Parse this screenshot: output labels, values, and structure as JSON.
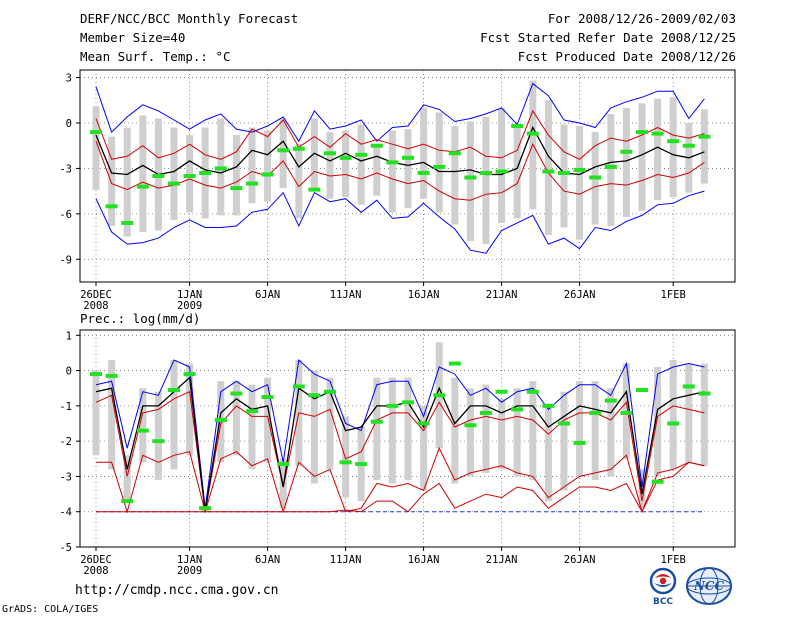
{
  "header": {
    "title": "DERF/NCC/BCC Monthly Forecast",
    "member_size": "Member Size=40",
    "variable": "Mean Surf. Temp.: °C",
    "period": "For 2008/12/26-2009/02/03",
    "started": "Fcst Started Refer Date 2008/12/25",
    "produced": "Fcst Produced Date 2008/12/26"
  },
  "footer": {
    "url": "http://cmdp.ncc.cma.gov.cn",
    "credit": "GrADS: COLA/IGES",
    "logo_bcc_text": "BCC",
    "logo_ncc_text": "NCC"
  },
  "chart_data": [
    {
      "type": "line",
      "title": "Mean Surf. Temp.: °C",
      "x_ticks": [
        {
          "day": 0,
          "label": "26DEC",
          "label2": "2008"
        },
        {
          "day": 6,
          "label": "1JAN",
          "label2": "2009"
        },
        {
          "day": 11,
          "label": "6JAN"
        },
        {
          "day": 16,
          "label": "11JAN"
        },
        {
          "day": 21,
          "label": "16JAN"
        },
        {
          "day": 26,
          "label": "21JAN"
        },
        {
          "day": 31,
          "label": "26JAN"
        },
        {
          "day": 37,
          "label": "1FEB"
        }
      ],
      "ylim": [
        -10.5,
        3.5
      ],
      "y_ticks": [
        3,
        0,
        -3,
        -6,
        -9
      ],
      "series": [
        {
          "name": "max",
          "color": "#0000ff",
          "values": [
            2.4,
            -0.6,
            0.4,
            1.2,
            0.8,
            0.2,
            -0.4,
            0.2,
            0.6,
            -0.4,
            -0.6,
            -0.2,
            0.4,
            -1.2,
            0.8,
            -0.4,
            -0.2,
            0.2,
            -1.2,
            -0.3,
            -0.2,
            1.2,
            0.9,
            0.1,
            0.3,
            0.6,
            1.0,
            -0.1,
            2.6,
            1.8,
            0.2,
            0.0,
            -0.3,
            1.0,
            1.4,
            1.7,
            2.1,
            2.1,
            0.3,
            1.6
          ]
        },
        {
          "name": "p90",
          "color": "#d00000",
          "values": [
            0.3,
            -2.4,
            -2.2,
            -1.5,
            -2.3,
            -2.0,
            -1.4,
            -2.1,
            -2.4,
            -1.9,
            -0.4,
            -0.9,
            0.2,
            -1.6,
            -0.9,
            -1.6,
            -0.7,
            -1.4,
            -1.1,
            -1.4,
            -1.7,
            -1.4,
            -1.8,
            -1.9,
            -1.6,
            -2.2,
            -2.3,
            -1.8,
            0.8,
            -0.8,
            -1.9,
            -2.4,
            -1.5,
            -1.0,
            -1.2,
            -0.8,
            -0.3,
            -0.8,
            -1.0,
            -0.7
          ]
        },
        {
          "name": "mean",
          "color": "#000000",
          "values": [
            -0.8,
            -3.3,
            -3.4,
            -2.8,
            -3.4,
            -3.2,
            -2.5,
            -3.1,
            -3.3,
            -2.9,
            -1.8,
            -2.1,
            -1.2,
            -2.9,
            -2.0,
            -2.5,
            -2.0,
            -2.5,
            -2.2,
            -2.6,
            -2.8,
            -2.6,
            -3.2,
            -3.2,
            -3.1,
            -3.4,
            -3.4,
            -3.0,
            -0.3,
            -2.2,
            -3.3,
            -3.4,
            -2.9,
            -2.6,
            -2.5,
            -2.1,
            -1.6,
            -2.1,
            -2.3,
            -1.9
          ]
        },
        {
          "name": "p10",
          "color": "#d00000",
          "values": [
            -1.2,
            -4.0,
            -4.4,
            -3.9,
            -4.3,
            -4.1,
            -3.7,
            -4.1,
            -4.3,
            -3.9,
            -3.2,
            -3.5,
            -2.5,
            -4.2,
            -3.2,
            -3.5,
            -3.4,
            -3.7,
            -3.3,
            -3.7,
            -4.0,
            -3.8,
            -4.5,
            -5.0,
            -5.1,
            -4.7,
            -4.6,
            -4.0,
            -1.4,
            -3.3,
            -4.5,
            -4.7,
            -4.2,
            -4.0,
            -4.1,
            -3.8,
            -3.4,
            -3.6,
            -3.3,
            -2.6
          ]
        },
        {
          "name": "min",
          "color": "#0000ff",
          "values": [
            -5.0,
            -7.2,
            -8.0,
            -7.9,
            -7.6,
            -6.9,
            -6.4,
            -6.9,
            -6.9,
            -6.8,
            -5.9,
            -5.7,
            -4.6,
            -6.8,
            -4.6,
            -5.2,
            -5.0,
            -5.9,
            -5.1,
            -6.3,
            -6.2,
            -5.3,
            -6.2,
            -7.0,
            -8.4,
            -8.6,
            -7.1,
            -6.6,
            -6.1,
            -8.0,
            -7.6,
            -8.3,
            -6.9,
            -7.1,
            -6.5,
            -6.1,
            -5.4,
            -5.3,
            -4.8,
            -4.5
          ]
        }
      ],
      "box_top": [
        1.1,
        -0.9,
        -0.3,
        0.5,
        0.3,
        -0.3,
        -0.8,
        -0.3,
        0.3,
        -0.8,
        -0.3,
        -0.5,
        0.3,
        -1.4,
        0.3,
        -0.6,
        -0.5,
        -0.1,
        -1.5,
        -0.5,
        -0.4,
        1.0,
        0.7,
        -0.2,
        0.1,
        0.4,
        1.0,
        -0.3,
        2.8,
        1.5,
        -0.1,
        -0.2,
        -0.6,
        0.6,
        1.0,
        1.3,
        1.6,
        1.7,
        0.0,
        0.9
      ],
      "box_bottom": [
        -4.4,
        -6.8,
        -7.5,
        -7.2,
        -7.1,
        -6.4,
        -5.9,
        -6.3,
        -6.1,
        -6.1,
        -5.3,
        -5.2,
        -4.3,
        -6.3,
        -4.4,
        -5.0,
        -4.9,
        -5.4,
        -4.8,
        -5.9,
        -5.6,
        -5.0,
        -5.9,
        -6.7,
        -7.8,
        -8.0,
        -6.6,
        -6.3,
        -5.7,
        -7.4,
        -6.9,
        -7.7,
        -6.7,
        -6.8,
        -6.2,
        -5.8,
        -5.1,
        -4.9,
        -4.6,
        -4.0
      ],
      "obs_marks": [
        -0.6,
        -5.5,
        -6.6,
        -4.2,
        -3.5,
        -4.0,
        -3.5,
        -3.3,
        -3.0,
        -4.3,
        -4.0,
        -3.4,
        -1.8,
        -1.7,
        -4.4,
        -2.0,
        -2.3,
        -2.1,
        -1.5,
        -2.6,
        -2.3,
        -3.3,
        -2.9,
        -2.0,
        -3.6,
        -3.3,
        -3.2,
        -0.2,
        -0.7,
        -3.2,
        -3.3,
        -3.1,
        -3.6,
        -2.9,
        -1.9,
        -0.6,
        -0.7,
        -1.2,
        -1.5,
        -0.9
      ]
    },
    {
      "type": "line",
      "title": "Prec.: log(mm/d)",
      "x_ticks": [
        {
          "day": 0,
          "label": "26DEC",
          "label2": "2008"
        },
        {
          "day": 6,
          "label": "1JAN",
          "label2": "2009"
        },
        {
          "day": 11,
          "label": "6JAN"
        },
        {
          "day": 16,
          "label": "11JAN"
        },
        {
          "day": 21,
          "label": "16JAN"
        },
        {
          "day": 26,
          "label": "21JAN"
        },
        {
          "day": 31,
          "label": "26JAN"
        },
        {
          "day": 37,
          "label": "1FEB"
        }
      ],
      "ylim": [
        -5,
        1.15
      ],
      "y_ticks": [
        1,
        0,
        -1,
        -2,
        -3,
        -4,
        -5
      ],
      "series": [
        {
          "name": "max",
          "color": "#0000ff",
          "values": [
            -0.4,
            -0.3,
            -2.2,
            -0.6,
            -0.7,
            0.3,
            0.1,
            -3.9,
            -0.6,
            -0.3,
            -0.6,
            -0.4,
            -2.6,
            0.3,
            -0.1,
            -0.3,
            -1.5,
            -1.7,
            -0.4,
            -0.3,
            -0.3,
            -1.3,
            0.1,
            -0.1,
            -0.7,
            -0.5,
            -0.9,
            -0.6,
            -0.5,
            -1.1,
            -0.7,
            -0.4,
            -0.4,
            -0.7,
            0.2,
            -3.3,
            -0.1,
            0.1,
            0.2,
            0.1
          ]
        },
        {
          "name": "p90",
          "color": "#d00000",
          "values": [
            -0.9,
            -0.7,
            -3.0,
            -1.2,
            -1.1,
            -0.8,
            -0.6,
            -4.0,
            -1.5,
            -1.0,
            -1.3,
            -1.3,
            -3.3,
            -1.2,
            -1.3,
            -1.1,
            -2.5,
            -2.3,
            -1.4,
            -1.2,
            -1.2,
            -1.7,
            -0.9,
            -1.6,
            -1.4,
            -1.3,
            -1.4,
            -1.3,
            -1.4,
            -1.8,
            -1.4,
            -1.2,
            -1.2,
            -1.4,
            -0.9,
            -3.7,
            -1.3,
            -1.0,
            -1.1,
            -1.2
          ]
        },
        {
          "name": "mean",
          "color": "#000000",
          "values": [
            -0.6,
            -0.5,
            -2.8,
            -1.0,
            -1.0,
            -0.6,
            -0.2,
            -4.0,
            -1.2,
            -0.8,
            -1.1,
            -1.0,
            -3.3,
            -0.5,
            -0.8,
            -0.6,
            -1.7,
            -1.6,
            -1.0,
            -1.0,
            -0.9,
            -1.6,
            -0.5,
            -1.5,
            -1.0,
            -1.0,
            -1.2,
            -1.0,
            -1.0,
            -1.6,
            -1.3,
            -1.0,
            -1.1,
            -1.2,
            -0.6,
            -3.5,
            -1.1,
            -0.8,
            -0.7,
            -0.6
          ]
        },
        {
          "name": "p10",
          "color": "#d00000",
          "values": [
            -2.6,
            -2.6,
            -4.0,
            -2.4,
            -2.6,
            -2.4,
            -2.3,
            -4.0,
            -2.5,
            -2.3,
            -2.7,
            -2.5,
            -4.0,
            -2.6,
            -3.0,
            -2.8,
            -4.0,
            -3.9,
            -3.2,
            -3.3,
            -3.2,
            -3.4,
            -2.2,
            -3.1,
            -2.9,
            -2.8,
            -2.7,
            -2.9,
            -3.0,
            -3.6,
            -3.3,
            -3.0,
            -2.9,
            -2.8,
            -2.4,
            -4.0,
            -2.9,
            -2.8,
            -2.6,
            -2.7
          ]
        },
        {
          "name": "min",
          "color": "#d00000",
          "values": [
            -4.0,
            -4.0,
            -4.0,
            -4.0,
            -4.0,
            -4.0,
            -4.0,
            -4.0,
            -4.0,
            -4.0,
            -4.0,
            -4.0,
            -4.0,
            -4.0,
            -4.0,
            -4.0,
            -3.95,
            -4.0,
            -3.7,
            -3.7,
            -4.0,
            -3.5,
            -3.2,
            -3.9,
            -3.7,
            -3.5,
            -3.6,
            -3.3,
            -3.4,
            -3.9,
            -3.6,
            -3.3,
            -3.3,
            -3.4,
            -3.2,
            -4.0,
            -3.1,
            -3.0,
            -2.6,
            -2.7
          ]
        }
      ],
      "box_top": [
        0.0,
        0.3,
        -2.4,
        -0.5,
        -0.6,
        0.3,
        0.2,
        -3.8,
        -0.3,
        -0.3,
        -0.4,
        -0.2,
        -2.5,
        0.3,
        0.0,
        -0.2,
        -1.3,
        -1.6,
        -0.2,
        -0.2,
        -0.2,
        -1.0,
        0.8,
        -0.2,
        -0.5,
        -0.4,
        -0.8,
        -0.5,
        -0.3,
        -1.0,
        -0.6,
        -0.3,
        -0.3,
        -0.5,
        0.2,
        -2.8,
        0.1,
        0.3,
        0.2,
        0.2
      ],
      "box_bottom": [
        -2.4,
        -2.8,
        -3.7,
        -2.6,
        -3.1,
        -2.8,
        -2.4,
        -4.0,
        -2.6,
        -2.4,
        -2.8,
        -2.6,
        -3.9,
        -2.7,
        -3.2,
        -2.8,
        -3.6,
        -3.7,
        -3.1,
        -3.2,
        -3.1,
        -3.4,
        -2.2,
        -3.2,
        -3.0,
        -2.9,
        -2.8,
        -3.0,
        -3.1,
        -3.7,
        -3.4,
        -3.0,
        -3.1,
        -3.0,
        -2.5,
        -3.9,
        -3.0,
        -2.8,
        -2.6,
        -2.7
      ],
      "obs_marks": [
        -0.1,
        -0.15,
        -3.7,
        -1.7,
        -2.0,
        -0.55,
        -0.1,
        -3.9,
        -1.4,
        -0.65,
        -1.15,
        -0.75,
        -2.65,
        -0.45,
        -0.7,
        -0.6,
        -2.6,
        -2.65,
        -1.45,
        -1.0,
        -0.9,
        -1.5,
        -0.7,
        0.2,
        -1.55,
        -1.2,
        -0.6,
        -1.1,
        -0.6,
        -1.0,
        -1.5,
        -2.05,
        -1.2,
        -0.85,
        -1.2,
        -0.55,
        -3.15,
        -1.5,
        -0.45,
        -0.65
      ],
      "reference_line": -4
    }
  ]
}
